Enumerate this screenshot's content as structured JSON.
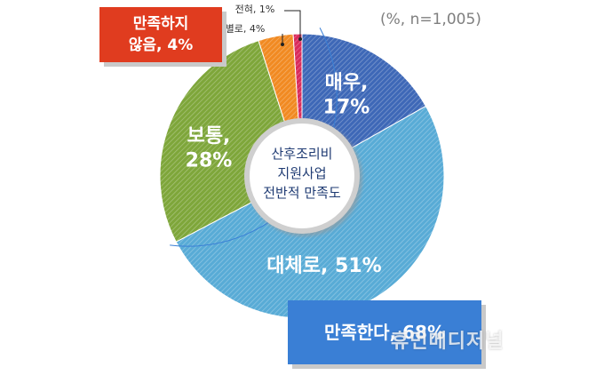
{
  "chart_data": {
    "type": "pie",
    "center_label": [
      "산후조리비",
      "지원사업",
      "전반적 만족도"
    ],
    "unit_note": "(%, n=1,005)",
    "slices": [
      {
        "label": "매우",
        "value": 17,
        "text": [
          "매우,",
          "17%"
        ],
        "color": "#3e68b7"
      },
      {
        "label": "대체로",
        "value": 51,
        "text": [
          "대체로, 51%"
        ],
        "color": "#58abd6"
      },
      {
        "label": "보통",
        "value": 28,
        "text": [
          "보통,",
          "28%"
        ],
        "color": "#7ea63a"
      },
      {
        "label": "별로",
        "value": 4,
        "text": [
          "별로, 4%"
        ],
        "color": "#f18a22"
      },
      {
        "label": "전혀",
        "value": 1,
        "text": [
          "전혀, 1%"
        ],
        "color": "#d92a5b"
      }
    ],
    "summary": {
      "dissatisfied": [
        "만족하지",
        "않음, 4%"
      ],
      "satisfied": "만족한다, 68%"
    }
  },
  "watermark": "휴먼메디저널"
}
